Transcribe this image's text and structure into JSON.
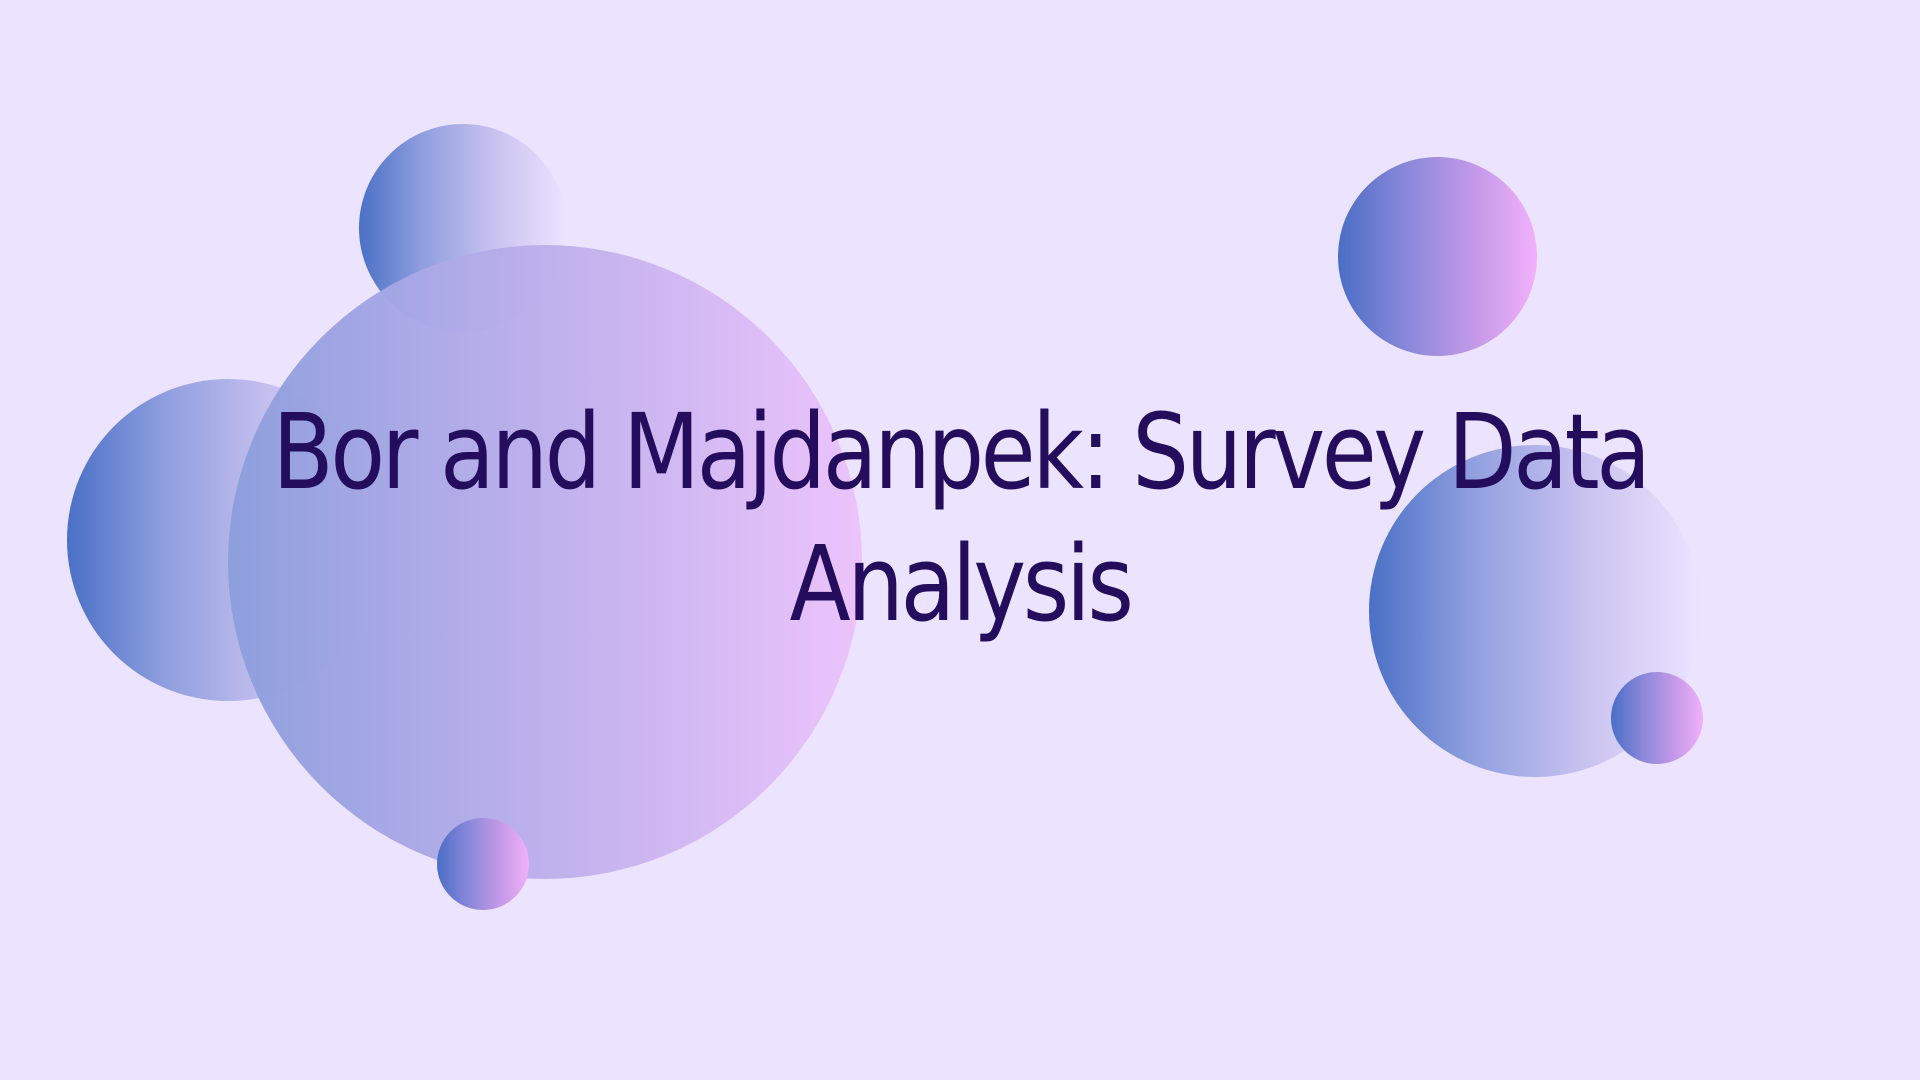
{
  "slide": {
    "title": "Bor and Majdanpek: Survey Data Analysis"
  },
  "colors": {
    "background": "#ece4ff",
    "title_text": "#240d5c",
    "bubble_gradient_start": "#4a6ec6",
    "bubble_gradient_end": "#f2b0fb"
  },
  "decorations": [
    {
      "name": "bubble",
      "style": "gradient-fade"
    },
    {
      "name": "bubble",
      "style": "gradient-fade"
    },
    {
      "name": "bubble",
      "style": "gradient-soft"
    },
    {
      "name": "bubble",
      "style": "gradient-strong"
    },
    {
      "name": "bubble",
      "style": "gradient-fade"
    },
    {
      "name": "bubble",
      "style": "gradient-strong"
    },
    {
      "name": "bubble",
      "style": "gradient-strong"
    }
  ]
}
